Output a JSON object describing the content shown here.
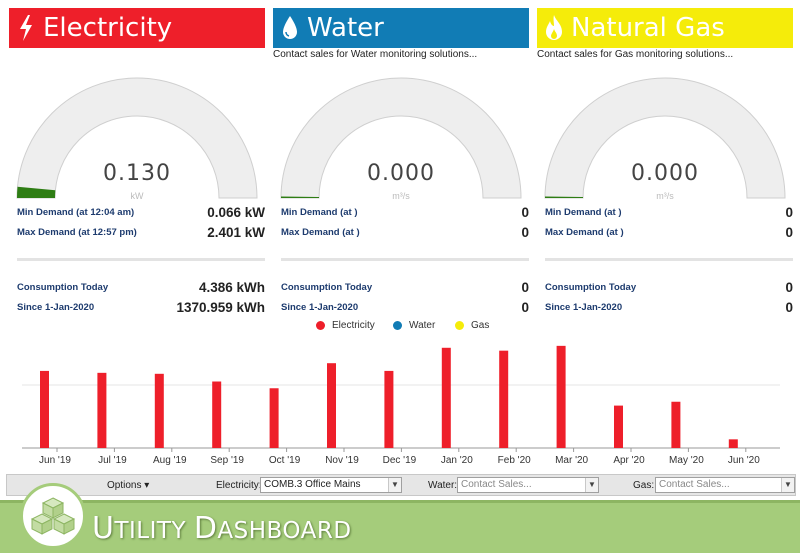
{
  "panels": [
    {
      "title": "Electricity",
      "icon": "lightning-icon",
      "color": "#ee1f2a",
      "contact": "",
      "gauge_value": "0.130",
      "gauge_unit": "kW",
      "gauge_fraction": 0.03,
      "gauge_color": "#2e7d14",
      "min_label": "Min Demand (at 12:04 am)",
      "min_value": "0.066 kW",
      "max_label": "Max Demand (at 12:57 pm)",
      "max_value": "2.401 kW",
      "today_label": "Consumption Today",
      "today_value": "4.386 kWh",
      "since_label": "Since 1-Jan-2020",
      "since_value": "1370.959 kWh"
    },
    {
      "title": "Water",
      "icon": "water-drop-icon",
      "color": "#117cb5",
      "contact": "Contact sales for Water monitoring solutions...",
      "gauge_value": "0.000",
      "gauge_unit": "m³/s",
      "gauge_fraction": 0,
      "gauge_color": "#2e7d14",
      "min_label": "Min Demand (at )",
      "min_value": "0",
      "max_label": "Max Demand (at )",
      "max_value": "0",
      "today_label": "Consumption Today",
      "today_value": "0",
      "since_label": "Since 1-Jan-2020",
      "since_value": "0"
    },
    {
      "title": "Natural Gas",
      "icon": "flame-icon",
      "color": "#f5ec0a",
      "contact": "Contact sales for Gas monitoring solutions...",
      "gauge_value": "0.000",
      "gauge_unit": "m³/s",
      "gauge_fraction": 0,
      "gauge_color": "#2e7d14",
      "min_label": "Min Demand (at )",
      "min_value": "0",
      "max_label": "Max Demand (at )",
      "max_value": "0",
      "today_label": "Consumption Today",
      "today_value": "0",
      "since_label": "Since 1-Jan-2020",
      "since_value": "0"
    }
  ],
  "legend": [
    {
      "name": "Electricity",
      "color": "#ee1f2a"
    },
    {
      "name": "Water",
      "color": "#117cb5"
    },
    {
      "name": "Gas",
      "color": "#f5ec0a"
    }
  ],
  "chart_data": {
    "type": "bar",
    "categories": [
      "Jun '19",
      "Jul '19",
      "Aug '19",
      "Sep '19",
      "Oct '19",
      "Nov '19",
      "Dec '19",
      "Jan '20",
      "Feb '20",
      "Mar '20",
      "Apr '20",
      "May '20",
      "Jun '20"
    ],
    "series": [
      {
        "name": "Electricity",
        "color": "#ee1f2a",
        "values": [
          80,
          78,
          77,
          69,
          62,
          88,
          80,
          104,
          101,
          106,
          44,
          48,
          9
        ]
      }
    ],
    "ylim": [
      0,
      110
    ],
    "grid": true,
    "legend_position": "top"
  },
  "toolbar": {
    "options_label": "Options ▾",
    "electricity_label": "Electricity:",
    "electricity_value": "COMB.3 Office Mains",
    "water_label": "Water:",
    "water_value": "Contact Sales...",
    "gas_label": "Gas:",
    "gas_value": "Contact Sales...",
    "dropdown_arrow": "▼"
  },
  "footer": {
    "title_first": "U",
    "title_rest": "TILITY ",
    "title_second": "D",
    "title_rest2": "ASHBOARD",
    "brand_color": "#a5cc7b"
  }
}
